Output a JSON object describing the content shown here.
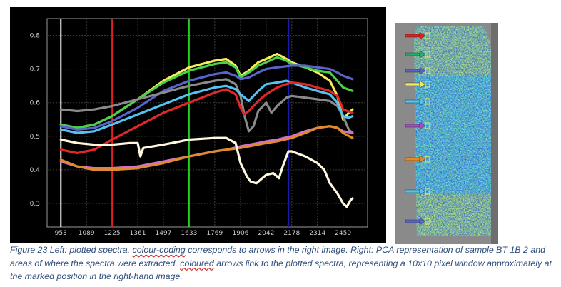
{
  "chart_data": {
    "type": "line",
    "x_ticks": [
      "953",
      "1089",
      "1225",
      "1361",
      "1497",
      "1633",
      "1769",
      "1906",
      "2042",
      "2178",
      "2314",
      "2450"
    ],
    "x_tick_values": [
      953,
      1089,
      1225,
      1361,
      1497,
      1633,
      1769,
      1906,
      2042,
      2178,
      2314,
      2450
    ],
    "xlim": [
      880,
      2580
    ],
    "y_ticks": [
      "0.3",
      "0.4",
      "0.5",
      "0.6",
      "0.7",
      "0.8"
    ],
    "y_tick_values": [
      0.3,
      0.4,
      0.5,
      0.6,
      0.7,
      0.8
    ],
    "ylim": [
      0.23,
      0.85
    ],
    "grid": true,
    "background": "#000000",
    "vertical_markers": [
      {
        "x": 953,
        "color": "#ffffff"
      },
      {
        "x": 1225,
        "color": "#e02020"
      },
      {
        "x": 1633,
        "color": "#22d022"
      },
      {
        "x": 2161,
        "color": "#1a1aa8"
      }
    ],
    "series": [
      {
        "color": "#f5ee5a",
        "points": [
          [
            953,
            0.535
          ],
          [
            1040,
            0.525
          ],
          [
            1130,
            0.535
          ],
          [
            1225,
            0.56
          ],
          [
            1361,
            0.61
          ],
          [
            1497,
            0.665
          ],
          [
            1633,
            0.705
          ],
          [
            1769,
            0.725
          ],
          [
            1830,
            0.73
          ],
          [
            1880,
            0.71
          ],
          [
            1906,
            0.68
          ],
          [
            1950,
            0.695
          ],
          [
            2000,
            0.72
          ],
          [
            2042,
            0.73
          ],
          [
            2100,
            0.745
          ],
          [
            2150,
            0.73
          ],
          [
            2178,
            0.72
          ],
          [
            2250,
            0.705
          ],
          [
            2314,
            0.69
          ],
          [
            2380,
            0.665
          ],
          [
            2420,
            0.62
          ],
          [
            2450,
            0.55
          ],
          [
            2480,
            0.57
          ],
          [
            2500,
            0.58
          ]
        ]
      },
      {
        "color": "#4ad04a",
        "points": [
          [
            953,
            0.535
          ],
          [
            1040,
            0.525
          ],
          [
            1130,
            0.535
          ],
          [
            1225,
            0.56
          ],
          [
            1361,
            0.61
          ],
          [
            1497,
            0.66
          ],
          [
            1633,
            0.695
          ],
          [
            1769,
            0.715
          ],
          [
            1830,
            0.72
          ],
          [
            1880,
            0.705
          ],
          [
            1906,
            0.675
          ],
          [
            1950,
            0.69
          ],
          [
            2000,
            0.71
          ],
          [
            2042,
            0.72
          ],
          [
            2100,
            0.735
          ],
          [
            2150,
            0.725
          ],
          [
            2178,
            0.715
          ],
          [
            2250,
            0.705
          ],
          [
            2314,
            0.695
          ],
          [
            2380,
            0.69
          ],
          [
            2420,
            0.665
          ],
          [
            2450,
            0.645
          ],
          [
            2500,
            0.635
          ]
        ]
      },
      {
        "color": "#5a64c8",
        "points": [
          [
            953,
            0.53
          ],
          [
            1040,
            0.52
          ],
          [
            1130,
            0.525
          ],
          [
            1225,
            0.545
          ],
          [
            1361,
            0.585
          ],
          [
            1497,
            0.635
          ],
          [
            1633,
            0.665
          ],
          [
            1769,
            0.685
          ],
          [
            1830,
            0.69
          ],
          [
            1880,
            0.68
          ],
          [
            1906,
            0.67
          ],
          [
            1950,
            0.675
          ],
          [
            2000,
            0.69
          ],
          [
            2042,
            0.7
          ],
          [
            2100,
            0.705
          ],
          [
            2178,
            0.71
          ],
          [
            2250,
            0.71
          ],
          [
            2314,
            0.705
          ],
          [
            2380,
            0.7
          ],
          [
            2420,
            0.69
          ],
          [
            2450,
            0.68
          ],
          [
            2500,
            0.67
          ]
        ]
      },
      {
        "color": "#8a8a8a",
        "points": [
          [
            953,
            0.58
          ],
          [
            1040,
            0.575
          ],
          [
            1130,
            0.58
          ],
          [
            1225,
            0.59
          ],
          [
            1361,
            0.61
          ],
          [
            1497,
            0.63
          ],
          [
            1633,
            0.65
          ],
          [
            1769,
            0.665
          ],
          [
            1830,
            0.67
          ],
          [
            1880,
            0.655
          ],
          [
            1906,
            0.62
          ],
          [
            1930,
            0.555
          ],
          [
            1950,
            0.515
          ],
          [
            1975,
            0.53
          ],
          [
            2000,
            0.575
          ],
          [
            2042,
            0.6
          ],
          [
            2070,
            0.57
          ],
          [
            2100,
            0.59
          ],
          [
            2150,
            0.615
          ],
          [
            2178,
            0.62
          ],
          [
            2250,
            0.615
          ],
          [
            2314,
            0.61
          ],
          [
            2380,
            0.605
          ],
          [
            2420,
            0.59
          ],
          [
            2450,
            0.56
          ],
          [
            2480,
            0.52
          ],
          [
            2500,
            0.51
          ]
        ]
      },
      {
        "color": "#56c2f0",
        "points": [
          [
            953,
            0.52
          ],
          [
            1040,
            0.51
          ],
          [
            1130,
            0.515
          ],
          [
            1225,
            0.535
          ],
          [
            1361,
            0.565
          ],
          [
            1497,
            0.595
          ],
          [
            1633,
            0.625
          ],
          [
            1769,
            0.645
          ],
          [
            1830,
            0.65
          ],
          [
            1880,
            0.64
          ],
          [
            1906,
            0.625
          ],
          [
            1950,
            0.605
          ],
          [
            2000,
            0.635
          ],
          [
            2042,
            0.655
          ],
          [
            2100,
            0.66
          ],
          [
            2150,
            0.665
          ],
          [
            2178,
            0.66
          ],
          [
            2250,
            0.645
          ],
          [
            2314,
            0.635
          ],
          [
            2380,
            0.625
          ],
          [
            2420,
            0.6
          ],
          [
            2450,
            0.56
          ],
          [
            2480,
            0.555
          ],
          [
            2500,
            0.56
          ]
        ]
      },
      {
        "color": "#e02828",
        "points": [
          [
            953,
            0.46
          ],
          [
            1040,
            0.45
          ],
          [
            1130,
            0.46
          ],
          [
            1225,
            0.49
          ],
          [
            1361,
            0.53
          ],
          [
            1497,
            0.57
          ],
          [
            1633,
            0.6
          ],
          [
            1769,
            0.63
          ],
          [
            1830,
            0.64
          ],
          [
            1880,
            0.625
          ],
          [
            1906,
            0.585
          ],
          [
            1925,
            0.565
          ],
          [
            1950,
            0.575
          ],
          [
            2000,
            0.605
          ],
          [
            2042,
            0.625
          ],
          [
            2100,
            0.645
          ],
          [
            2150,
            0.655
          ],
          [
            2178,
            0.66
          ],
          [
            2250,
            0.655
          ],
          [
            2314,
            0.645
          ],
          [
            2380,
            0.635
          ],
          [
            2420,
            0.62
          ],
          [
            2450,
            0.58
          ],
          [
            2500,
            0.57
          ]
        ]
      },
      {
        "color": "#d070d0",
        "points": [
          [
            953,
            0.425
          ],
          [
            1040,
            0.41
          ],
          [
            1130,
            0.405
          ],
          [
            1225,
            0.405
          ],
          [
            1361,
            0.41
          ],
          [
            1497,
            0.425
          ],
          [
            1633,
            0.44
          ],
          [
            1769,
            0.455
          ],
          [
            1830,
            0.46
          ],
          [
            1906,
            0.47
          ],
          [
            2000,
            0.48
          ],
          [
            2042,
            0.485
          ],
          [
            2100,
            0.49
          ],
          [
            2178,
            0.5
          ],
          [
            2250,
            0.515
          ],
          [
            2314,
            0.525
          ],
          [
            2380,
            0.53
          ],
          [
            2420,
            0.525
          ],
          [
            2450,
            0.515
          ],
          [
            2500,
            0.51
          ]
        ]
      },
      {
        "color": "#e08a2a",
        "points": [
          [
            953,
            0.43
          ],
          [
            1040,
            0.41
          ],
          [
            1130,
            0.4
          ],
          [
            1225,
            0.4
          ],
          [
            1361,
            0.405
          ],
          [
            1497,
            0.42
          ],
          [
            1633,
            0.44
          ],
          [
            1769,
            0.455
          ],
          [
            1830,
            0.46
          ],
          [
            1906,
            0.465
          ],
          [
            2000,
            0.475
          ],
          [
            2042,
            0.48
          ],
          [
            2100,
            0.485
          ],
          [
            2178,
            0.495
          ],
          [
            2250,
            0.51
          ],
          [
            2314,
            0.525
          ],
          [
            2380,
            0.53
          ],
          [
            2420,
            0.525
          ],
          [
            2450,
            0.51
          ],
          [
            2500,
            0.495
          ]
        ]
      },
      {
        "color": "#fff8dc",
        "points": [
          [
            953,
            0.49
          ],
          [
            1040,
            0.48
          ],
          [
            1130,
            0.475
          ],
          [
            1225,
            0.475
          ],
          [
            1320,
            0.48
          ],
          [
            1361,
            0.48
          ],
          [
            1375,
            0.44
          ],
          [
            1390,
            0.465
          ],
          [
            1497,
            0.475
          ],
          [
            1633,
            0.49
          ],
          [
            1769,
            0.495
          ],
          [
            1830,
            0.495
          ],
          [
            1880,
            0.48
          ],
          [
            1906,
            0.42
          ],
          [
            1940,
            0.38
          ],
          [
            1960,
            0.365
          ],
          [
            1990,
            0.36
          ],
          [
            2042,
            0.385
          ],
          [
            2080,
            0.39
          ],
          [
            2110,
            0.375
          ],
          [
            2130,
            0.41
          ],
          [
            2160,
            0.455
          ],
          [
            2178,
            0.455
          ],
          [
            2250,
            0.44
          ],
          [
            2314,
            0.42
          ],
          [
            2350,
            0.4
          ],
          [
            2380,
            0.36
          ],
          [
            2420,
            0.33
          ],
          [
            2450,
            0.3
          ],
          [
            2470,
            0.29
          ],
          [
            2490,
            0.31
          ],
          [
            2500,
            0.315
          ]
        ]
      }
    ]
  },
  "pca_image": {
    "arrow_colors": [
      "#e02020",
      "#20b070",
      "#5a64c8",
      "#f5ee5a",
      "#56c2f0",
      "#a050c0",
      "#e08a2a",
      "#56c2f0",
      "#5a64c8"
    ]
  },
  "caption": {
    "prefix": "Figure 23 Left: plotted spectra, ",
    "word1": "colour-coding",
    "middle": " corresponds to arrows in the right image. Right: PCA representation of sample BT 1B 2 and areas of where the spectra were extracted, ",
    "word2": "coloured",
    "suffix": " arrows link to the plotted spectra, representing a 10x10 pixel window approximately at the marked position in the right-hand image."
  }
}
